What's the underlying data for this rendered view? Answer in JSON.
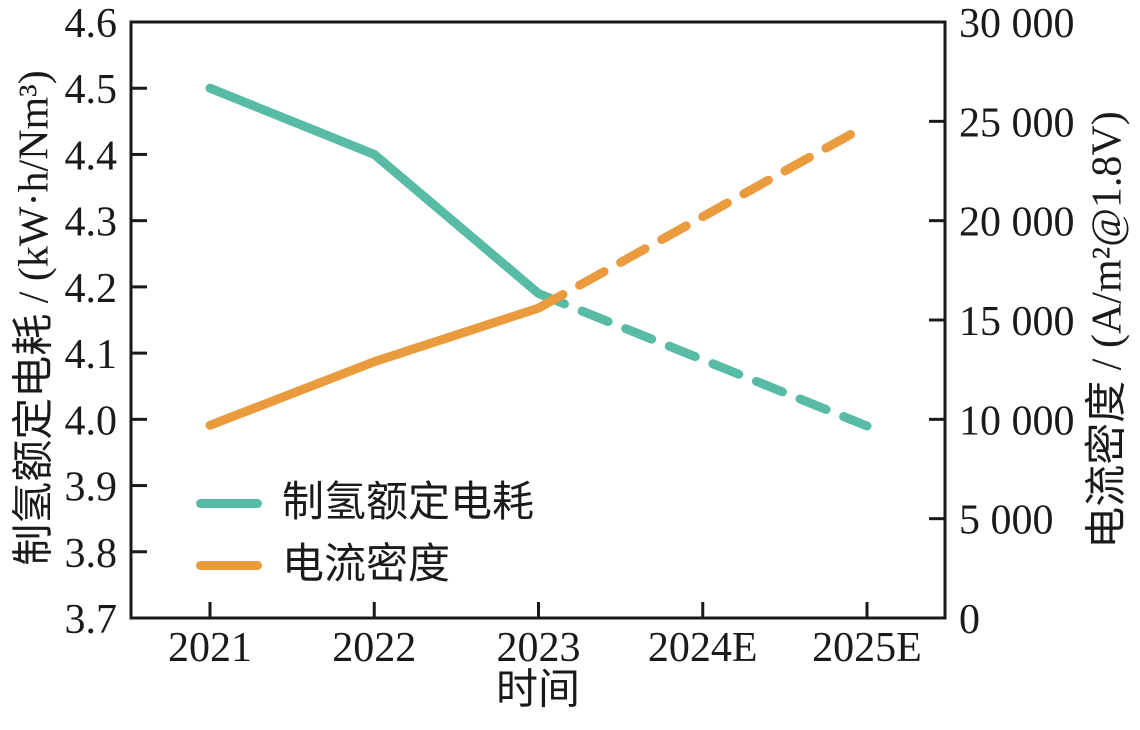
{
  "chart_data": {
    "type": "line",
    "title": "",
    "xlabel": "时间",
    "categories": [
      "2021",
      "2022",
      "2023",
      "2024E",
      "2025E"
    ],
    "left_axis": {
      "label": "制氢额定电耗 / (kW·h/Nm³)",
      "min": 3.7,
      "max": 4.6,
      "tick_labels": [
        "4.6",
        "4.5",
        "4.4",
        "4.3",
        "4.2",
        "4.1",
        "4.0",
        "3.9",
        "3.8",
        "3.7"
      ],
      "tick_values": [
        4.6,
        4.5,
        4.4,
        4.3,
        4.2,
        4.1,
        4.0,
        3.9,
        3.8,
        3.7
      ]
    },
    "right_axis": {
      "label": "电流密度 / (A/m²@1.8V)",
      "min": 0,
      "max": 30000,
      "tick_labels": [
        "30 000",
        "25 000",
        "20 000",
        "15 000",
        "10 000",
        "5 000",
        "0"
      ],
      "tick_values": [
        30000,
        25000,
        20000,
        15000,
        10000,
        5000,
        0
      ]
    },
    "series": [
      {
        "name": "制氢额定电耗",
        "axis": "left",
        "color": "#57BBA5",
        "values": [
          4.5,
          4.4,
          4.19,
          4.09,
          3.99
        ],
        "dashed_from_index": 2
      },
      {
        "name": "电流密度",
        "axis": "right",
        "color": "#EA9B3E",
        "values": [
          9700,
          12900,
          15600,
          20200,
          24800
        ],
        "dashed_from_index": 2
      }
    ],
    "legend": {
      "position": "inside-bottom-left",
      "entries": [
        "制氢额定电耗",
        "电流密度"
      ]
    },
    "grid": false
  },
  "colors": {
    "axis": "#1a1a1a",
    "background": "#ffffff",
    "series_consumption": "#57BBA5",
    "series_current_density": "#EA9B3E"
  }
}
